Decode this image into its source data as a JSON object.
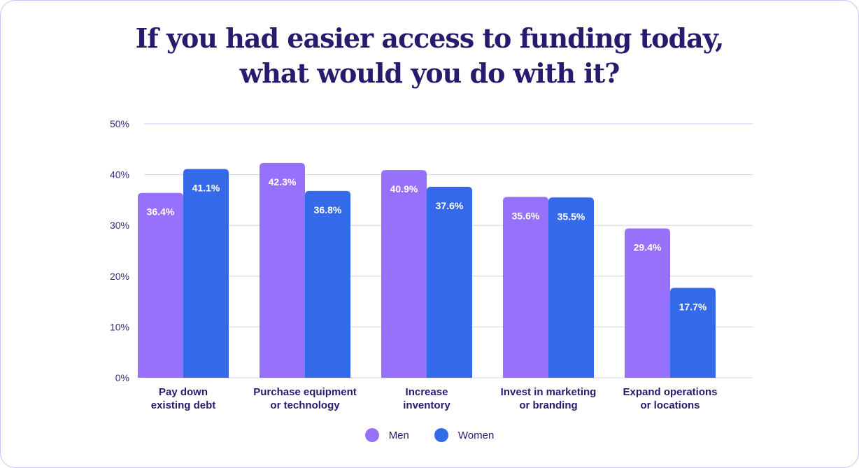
{
  "title": {
    "line1": "If you had easier access to funding today,",
    "line2": "what would you do with it?"
  },
  "colors": {
    "men": "#9771fb",
    "women": "#3469ea",
    "grid": "#d6d0f5",
    "text": "#2a1a6e",
    "tick": "#3a2d80"
  },
  "legend": {
    "men": "Men",
    "women": "Women"
  },
  "chart_data": {
    "type": "bar",
    "title": "If you had easier access to funding today, what would you do with it?",
    "categories": [
      [
        "Pay down",
        "existing debt"
      ],
      [
        "Purchase equipment",
        "or technology"
      ],
      [
        "Increase",
        "inventory"
      ],
      [
        "Invest in marketing",
        "or branding"
      ],
      [
        "Expand operations",
        "or locations"
      ]
    ],
    "series": [
      {
        "name": "Men",
        "values": [
          36.4,
          42.3,
          40.9,
          35.6,
          29.4
        ],
        "labels": [
          "36.4%",
          "42.3%",
          "40.9%",
          "35.6%",
          "29.4%"
        ]
      },
      {
        "name": "Women",
        "values": [
          41.1,
          36.8,
          37.6,
          35.5,
          17.7
        ],
        "labels": [
          "41.1%",
          "36.8%",
          "37.6%",
          "35.5%",
          "17.7%"
        ]
      }
    ],
    "yticks": [
      "0%",
      "10%",
      "20%",
      "30%",
      "40%",
      "50%"
    ],
    "ylim": [
      0,
      50
    ],
    "xlabel": "",
    "ylabel": "",
    "grid": true,
    "legend_position": "bottom-center"
  }
}
